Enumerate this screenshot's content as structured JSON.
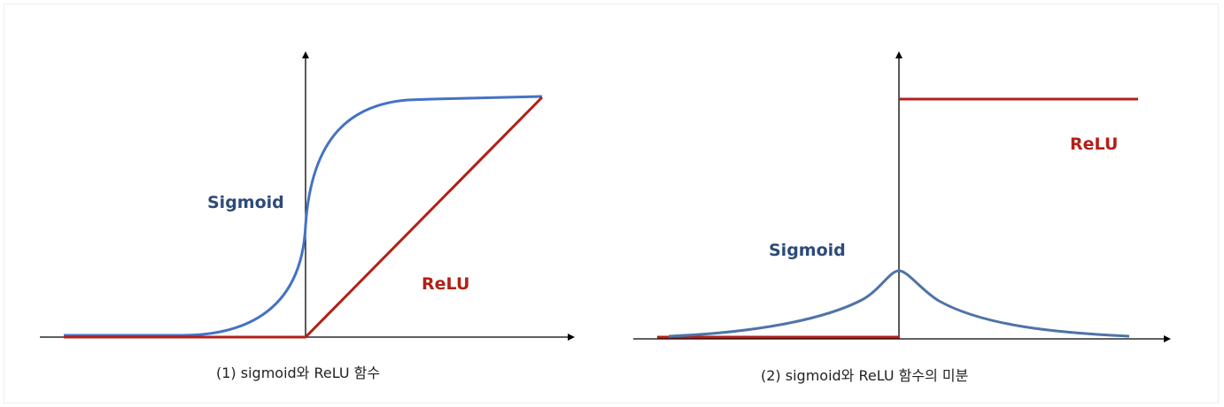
{
  "colors": {
    "sigmoid": "#4472c4",
    "sigmoid_label": "#2e4a7a",
    "relu": "#b22018",
    "axis": "#000000"
  },
  "left_panel": {
    "sigmoid_label": "Sigmoid",
    "relu_label": "ReLU",
    "caption": "(1) sigmoid와 ReLU 함수"
  },
  "right_panel": {
    "sigmoid_label": "Sigmoid",
    "relu_label": "ReLU",
    "caption": "(2) sigmoid와 ReLU 함수의 미분"
  }
}
